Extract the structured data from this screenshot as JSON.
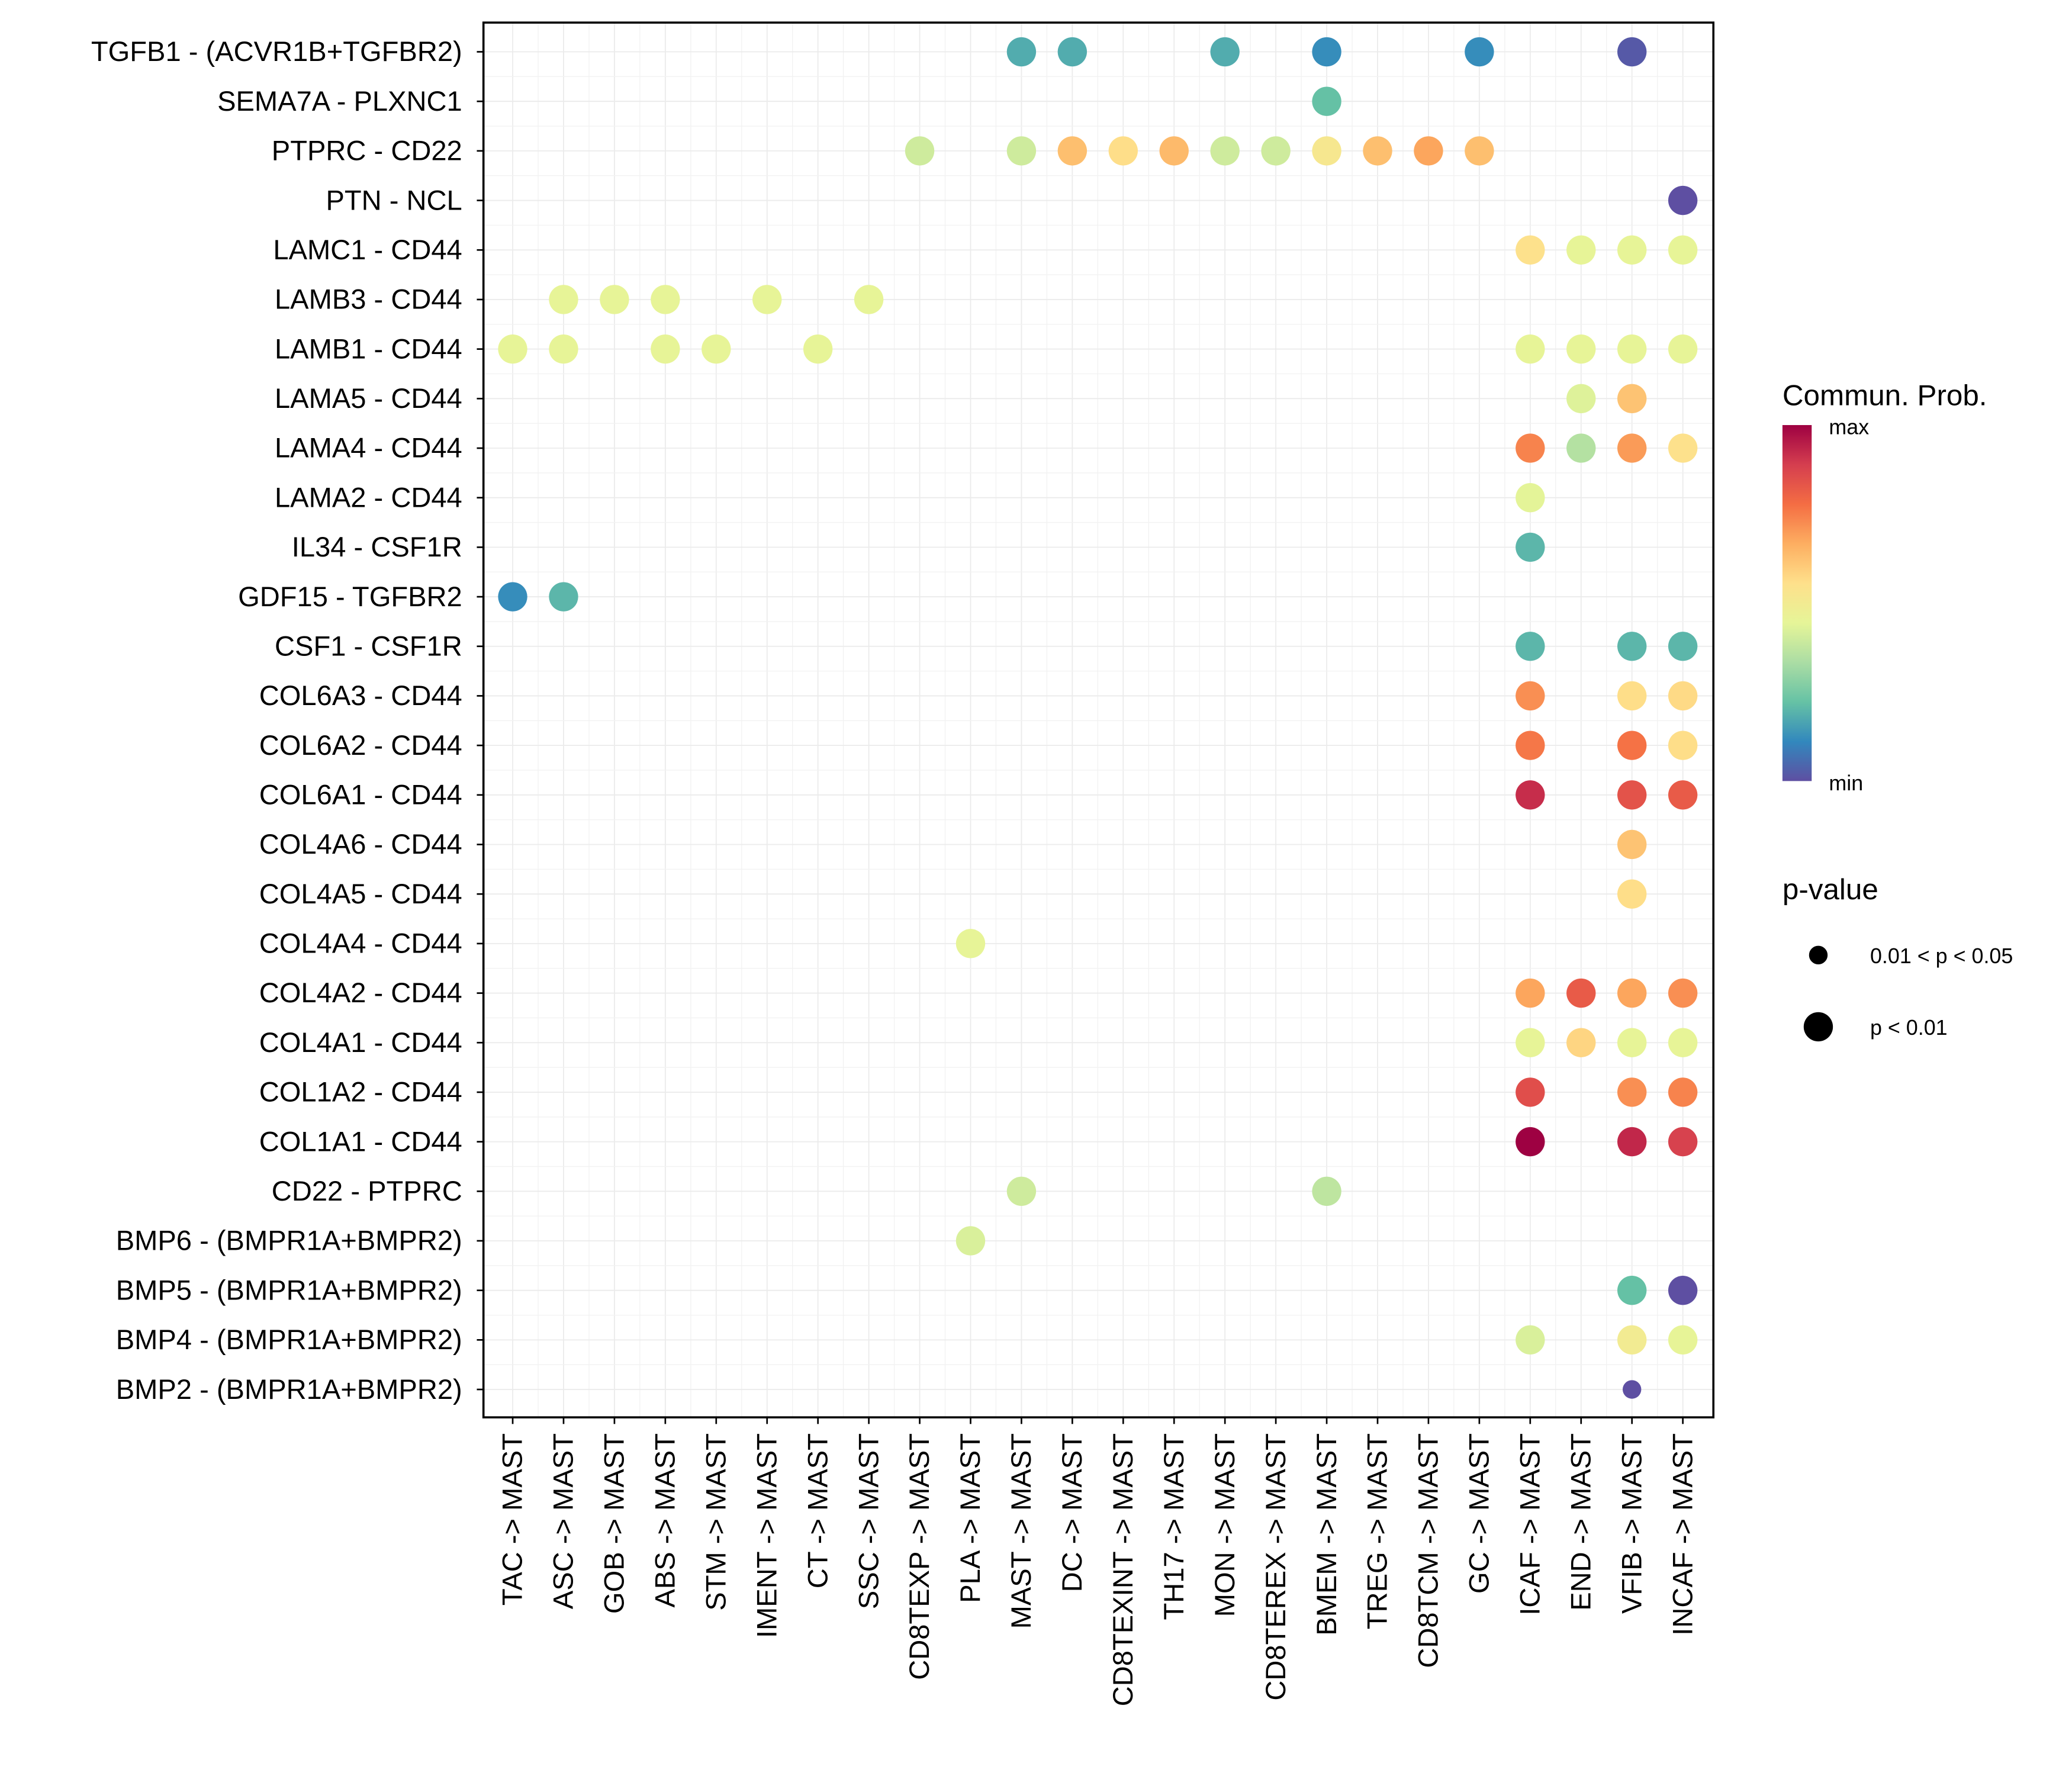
{
  "chart_data": {
    "type": "scatter",
    "subtype": "bubble-dot-plot",
    "title": "",
    "xlabel": "",
    "ylabel": "",
    "grid": true,
    "x_categories": [
      "TAC -> MAST",
      "ASC -> MAST",
      "GOB -> MAST",
      "ABS -> MAST",
      "STM -> MAST",
      "IMENT -> MAST",
      "CT -> MAST",
      "SSC -> MAST",
      "CD8TEXP -> MAST",
      "PLA -> MAST",
      "MAST -> MAST",
      "DC -> MAST",
      "CD8TEXINT -> MAST",
      "TH17 -> MAST",
      "MON -> MAST",
      "CD8TEREX -> MAST",
      "BMEM -> MAST",
      "TREG -> MAST",
      "CD8TCM -> MAST",
      "GC -> MAST",
      "ICAF -> MAST",
      "END -> MAST",
      "VFIB -> MAST",
      "INCAF -> MAST"
    ],
    "y_categories": [
      "TGFB1 - (ACVR1B+TGFBR2)",
      "SEMA7A - PLXNC1",
      "PTPRC - CD22",
      "PTN - NCL",
      "LAMC1 - CD44",
      "LAMB3 - CD44",
      "LAMB1 - CD44",
      "LAMA5 - CD44",
      "LAMA4 - CD44",
      "LAMA2 - CD44",
      "IL34 - CSF1R",
      "GDF15 - TGFBR2",
      "CSF1 - CSF1R",
      "COL6A3 - CD44",
      "COL6A2 - CD44",
      "COL6A1 - CD44",
      "COL4A6 - CD44",
      "COL4A5 - CD44",
      "COL4A4 - CD44",
      "COL4A2 - CD44",
      "COL4A1 - CD44",
      "COL1A2 - CD44",
      "COL1A1 - CD44",
      "CD22 - PTPRC",
      "BMP6 - (BMPR1A+BMPR2)",
      "BMP5 - (BMPR1A+BMPR2)",
      "BMP4 - (BMPR1A+BMPR2)",
      "BMP2 - (BMPR1A+BMPR2)"
    ],
    "points_note": "each point: [x_index, y_index, commun_prob_scaled(0=min,1=max), pvalue_class]",
    "points": [
      [
        10,
        0,
        0.18,
        "p<0.01"
      ],
      [
        11,
        0,
        0.18,
        "p<0.01"
      ],
      [
        14,
        0,
        0.18,
        "p<0.01"
      ],
      [
        16,
        0,
        0.12,
        "p<0.01"
      ],
      [
        19,
        0,
        0.12,
        "p<0.01"
      ],
      [
        22,
        0,
        0.02,
        "p<0.01"
      ],
      [
        16,
        1,
        0.22,
        "p<0.01"
      ],
      [
        8,
        2,
        0.4,
        "p<0.01"
      ],
      [
        10,
        2,
        0.4,
        "p<0.01"
      ],
      [
        11,
        2,
        0.63,
        "p<0.01"
      ],
      [
        12,
        2,
        0.56,
        "p<0.01"
      ],
      [
        13,
        2,
        0.64,
        "p<0.01"
      ],
      [
        14,
        2,
        0.4,
        "p<0.01"
      ],
      [
        15,
        2,
        0.4,
        "p<0.01"
      ],
      [
        16,
        2,
        0.52,
        "p<0.01"
      ],
      [
        17,
        2,
        0.63,
        "p<0.01"
      ],
      [
        18,
        2,
        0.68,
        "p<0.01"
      ],
      [
        19,
        2,
        0.63,
        "p<0.01"
      ],
      [
        23,
        3,
        0.0,
        "p<0.01"
      ],
      [
        20,
        4,
        0.55,
        "p<0.01"
      ],
      [
        21,
        4,
        0.45,
        "p<0.01"
      ],
      [
        22,
        4,
        0.45,
        "p<0.01"
      ],
      [
        23,
        4,
        0.45,
        "p<0.01"
      ],
      [
        1,
        5,
        0.45,
        "p<0.01"
      ],
      [
        2,
        5,
        0.45,
        "p<0.01"
      ],
      [
        3,
        5,
        0.45,
        "p<0.01"
      ],
      [
        5,
        5,
        0.45,
        "p<0.01"
      ],
      [
        7,
        5,
        0.45,
        "p<0.01"
      ],
      [
        0,
        6,
        0.45,
        "p<0.01"
      ],
      [
        1,
        6,
        0.45,
        "p<0.01"
      ],
      [
        3,
        6,
        0.45,
        "p<0.01"
      ],
      [
        4,
        6,
        0.45,
        "p<0.01"
      ],
      [
        6,
        6,
        0.45,
        "p<0.01"
      ],
      [
        20,
        6,
        0.45,
        "p<0.01"
      ],
      [
        21,
        6,
        0.45,
        "p<0.01"
      ],
      [
        22,
        6,
        0.45,
        "p<0.01"
      ],
      [
        23,
        6,
        0.45,
        "p<0.01"
      ],
      [
        21,
        7,
        0.43,
        "p<0.01"
      ],
      [
        22,
        7,
        0.62,
        "p<0.01"
      ],
      [
        20,
        8,
        0.74,
        "p<0.01"
      ],
      [
        21,
        8,
        0.35,
        "p<0.01"
      ],
      [
        22,
        8,
        0.7,
        "p<0.01"
      ],
      [
        23,
        8,
        0.55,
        "p<0.01"
      ],
      [
        20,
        9,
        0.44,
        "p<0.01"
      ],
      [
        20,
        10,
        0.2,
        "p<0.01"
      ],
      [
        0,
        11,
        0.12,
        "p<0.01"
      ],
      [
        1,
        11,
        0.2,
        "p<0.01"
      ],
      [
        20,
        12,
        0.2,
        "p<0.01"
      ],
      [
        22,
        12,
        0.2,
        "p<0.01"
      ],
      [
        23,
        12,
        0.2,
        "p<0.01"
      ],
      [
        20,
        13,
        0.72,
        "p<0.01"
      ],
      [
        22,
        13,
        0.56,
        "p<0.01"
      ],
      [
        23,
        13,
        0.57,
        "p<0.01"
      ],
      [
        20,
        14,
        0.76,
        "p<0.01"
      ],
      [
        22,
        14,
        0.77,
        "p<0.01"
      ],
      [
        23,
        14,
        0.56,
        "p<0.01"
      ],
      [
        20,
        15,
        0.92,
        "p<0.01"
      ],
      [
        22,
        15,
        0.84,
        "p<0.01"
      ],
      [
        23,
        15,
        0.82,
        "p<0.01"
      ],
      [
        22,
        16,
        0.62,
        "p<0.01"
      ],
      [
        22,
        17,
        0.56,
        "p<0.01"
      ],
      [
        9,
        18,
        0.45,
        "p<0.01"
      ],
      [
        20,
        19,
        0.68,
        "p<0.01"
      ],
      [
        21,
        19,
        0.82,
        "p<0.01"
      ],
      [
        22,
        19,
        0.68,
        "p<0.01"
      ],
      [
        23,
        19,
        0.72,
        "p<0.01"
      ],
      [
        20,
        20,
        0.45,
        "p<0.01"
      ],
      [
        21,
        20,
        0.58,
        "p<0.01"
      ],
      [
        22,
        20,
        0.45,
        "p<0.01"
      ],
      [
        23,
        20,
        0.45,
        "p<0.01"
      ],
      [
        20,
        21,
        0.85,
        "p<0.01"
      ],
      [
        22,
        21,
        0.72,
        "p<0.01"
      ],
      [
        23,
        21,
        0.74,
        "p<0.01"
      ],
      [
        20,
        22,
        1.0,
        "p<0.01"
      ],
      [
        22,
        22,
        0.93,
        "p<0.01"
      ],
      [
        23,
        22,
        0.88,
        "p<0.01"
      ],
      [
        10,
        23,
        0.4,
        "p<0.01"
      ],
      [
        16,
        23,
        0.37,
        "p<0.01"
      ],
      [
        9,
        24,
        0.42,
        "p<0.01"
      ],
      [
        22,
        25,
        0.22,
        "p<0.01"
      ],
      [
        23,
        25,
        0.0,
        "p<0.01"
      ],
      [
        20,
        26,
        0.42,
        "p<0.01"
      ],
      [
        22,
        26,
        0.5,
        "p<0.01"
      ],
      [
        23,
        26,
        0.45,
        "p<0.01"
      ],
      [
        22,
        27,
        0.0,
        "0.01<p<0.05"
      ]
    ],
    "color_scale": {
      "name": "Spectral",
      "stops": [
        "#5E4FA2",
        "#3288BD",
        "#66C2A5",
        "#ABDDA4",
        "#E6F598",
        "#FEE08B",
        "#FDAE61",
        "#F46D43",
        "#D53E4F",
        "#9E0142"
      ]
    },
    "legend": {
      "color_title": "Commun. Prob.",
      "color_max_label": "max",
      "color_min_label": "min",
      "size_title": "p-value",
      "size_entries": [
        {
          "label": "0.01 < p < 0.05",
          "class": "0.01<p<0.05"
        },
        {
          "label": "p < 0.01",
          "class": "p<0.01"
        }
      ],
      "placement": "right"
    }
  }
}
